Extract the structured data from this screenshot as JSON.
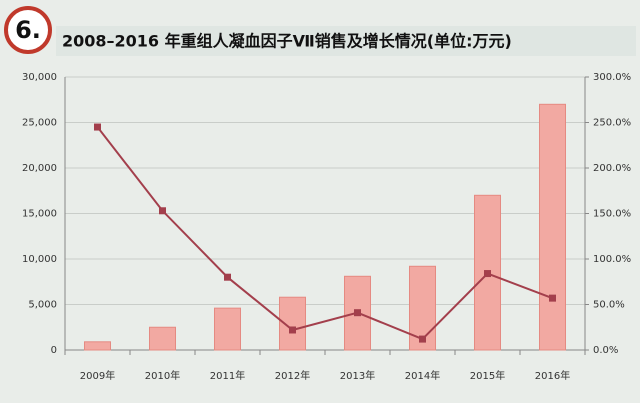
{
  "badge": "6.",
  "chart_data": {
    "type": "bar-line",
    "title": "2008–2016 年重组人凝血因子Ⅶ销售及增长情况(单位:万元)",
    "categories": [
      "2009年",
      "2010年",
      "2011年",
      "2012年",
      "2013年",
      "2014年",
      "2015年",
      "2016年"
    ],
    "series": [
      {
        "type": "bar",
        "color": "#f2a9a2",
        "values": [
          900,
          2500,
          4600,
          5800,
          8100,
          9200,
          17000,
          27000
        ]
      },
      {
        "type": "line",
        "axis": "y2",
        "color": "#a33f4c",
        "values": [
          245,
          153,
          80,
          22,
          41,
          12,
          84,
          57
        ]
      }
    ],
    "ylim": [
      0,
      30000
    ],
    "yticks": [
      0,
      {
        "value": 5000,
        "label": "5,000"
      },
      {
        "value": 10000,
        "label": "10,000"
      },
      {
        "value": 15000,
        "label": "15,000"
      },
      {
        "value": 20000,
        "label": "20,000"
      },
      {
        "value": 25000,
        "label": "25,000"
      },
      {
        "value": 30000,
        "label": "30,000"
      }
    ],
    "y2lim": [
      0,
      300
    ],
    "y2ticks": [
      {
        "value": 0,
        "label": "0.0%"
      },
      {
        "value": 50,
        "label": "50.0%"
      },
      {
        "value": 100,
        "label": "100.0%"
      },
      {
        "value": 150,
        "label": "150.0%"
      },
      {
        "value": 200,
        "label": "200.0%"
      },
      {
        "value": 250,
        "label": "250.0%"
      },
      {
        "value": 300,
        "label": "300.0%"
      }
    ],
    "grid": true
  }
}
